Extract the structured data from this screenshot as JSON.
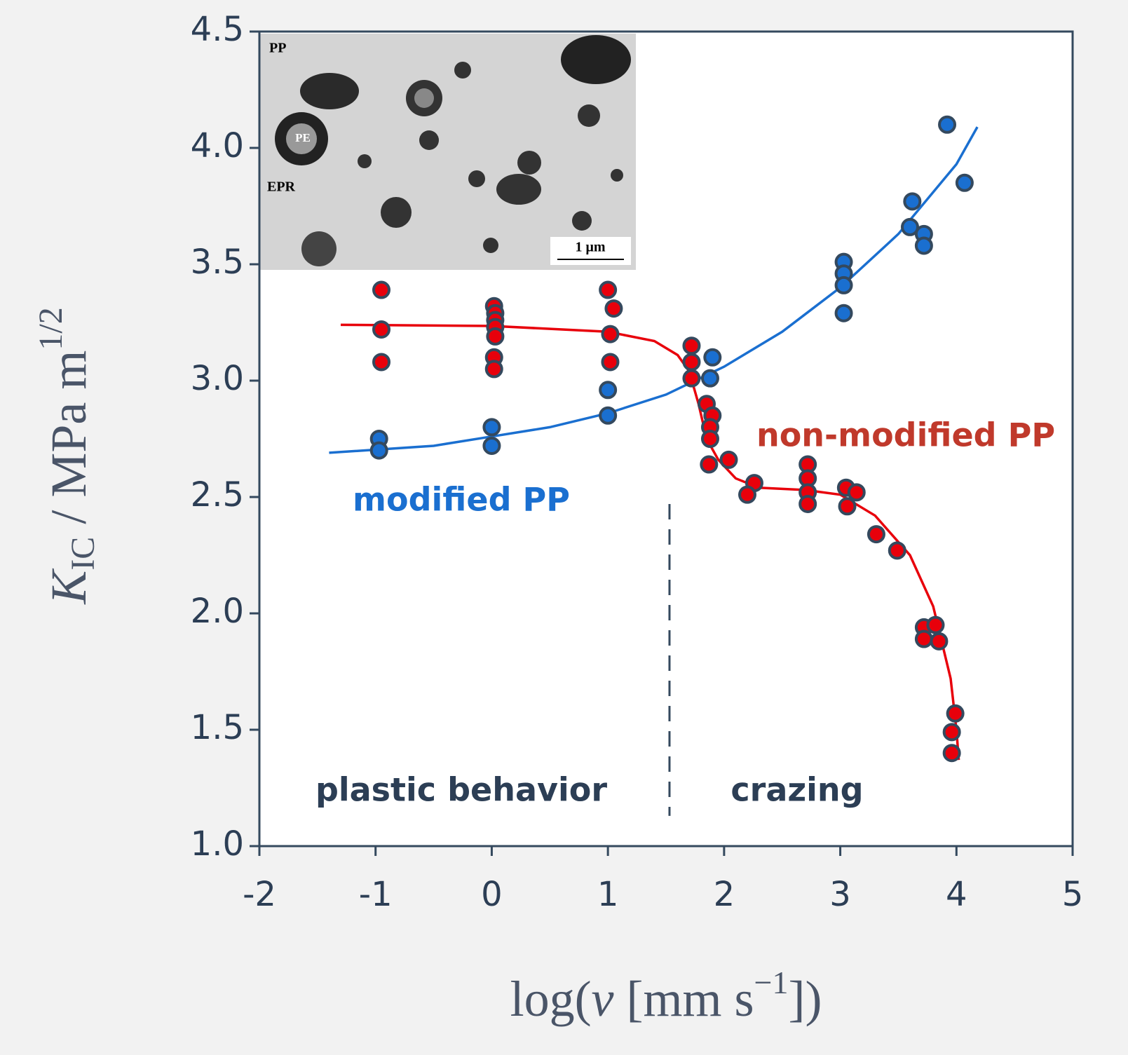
{
  "chart_data": {
    "type": "scatter",
    "xlim": [
      -2,
      5
    ],
    "ylim": [
      1,
      4.5
    ],
    "xticks": [
      -2,
      -1,
      0,
      1,
      2,
      3,
      4,
      5
    ],
    "yticks": [
      {
        "value": 1,
        "label": "1.0"
      },
      1.5,
      {
        "value": 2,
        "label": "2.0"
      },
      2.5,
      {
        "value": 3,
        "label": "3.0"
      },
      3.5,
      {
        "value": 4,
        "label": "4.0"
      },
      4.5
    ],
    "x_label": {
      "prefix": "log(",
      "symbol": "v",
      "unit": " [mm s",
      "superscript": "−1",
      "suffix": "])"
    },
    "y_label": {
      "symbol": "K",
      "subscript": "IC",
      "unit": " / MPa m",
      "superscript": "1/2"
    },
    "series": [
      {
        "name": "modified PP",
        "color": "#1a6fd0",
        "x": [
          -0.97,
          -0.97,
          0.0,
          0.0,
          1.0,
          1.0,
          1.9,
          1.88,
          3.03,
          3.03,
          3.03,
          3.03,
          3.62,
          3.6,
          3.72,
          3.72,
          3.92,
          4.07
        ],
        "y": [
          2.75,
          2.7,
          2.8,
          2.72,
          2.96,
          2.85,
          3.1,
          3.01,
          3.51,
          3.46,
          3.41,
          3.29,
          3.77,
          3.66,
          3.63,
          3.58,
          4.1,
          3.85
        ],
        "fit_x": [
          -1.4,
          -0.5,
          0,
          0.5,
          1,
          1.5,
          2,
          2.5,
          3,
          3.5,
          4,
          4.18
        ],
        "fit_y": [
          2.69,
          2.72,
          2.76,
          2.8,
          2.86,
          2.94,
          3.06,
          3.21,
          3.4,
          3.63,
          3.93,
          4.09
        ]
      },
      {
        "name": "non-modified PP",
        "color": "#e8000b",
        "x": [
          -0.95,
          -0.95,
          -0.95,
          0.02,
          0.03,
          0.03,
          0.03,
          0.03,
          0.02,
          0.02,
          1.0,
          1.05,
          1.02,
          1.02,
          1.72,
          1.72,
          1.72,
          1.85,
          1.9,
          1.88,
          1.88,
          2.04,
          1.87,
          2.26,
          2.2,
          2.72,
          2.72,
          2.72,
          2.72,
          3.05,
          3.14,
          3.06,
          3.31,
          3.49,
          3.72,
          3.72,
          3.82,
          3.85,
          3.99,
          3.96,
          3.96
        ],
        "y": [
          3.39,
          3.22,
          3.08,
          3.32,
          3.29,
          3.26,
          3.23,
          3.19,
          3.1,
          3.05,
          3.39,
          3.31,
          3.2,
          3.08,
          3.15,
          3.08,
          3.01,
          2.9,
          2.85,
          2.8,
          2.75,
          2.66,
          2.64,
          2.56,
          2.51,
          2.64,
          2.58,
          2.52,
          2.47,
          2.54,
          2.52,
          2.46,
          2.34,
          2.27,
          1.94,
          1.89,
          1.95,
          1.88,
          1.57,
          1.49,
          1.4
        ],
        "fit_x": [
          -1.3,
          0,
          1,
          1.4,
          1.6,
          1.7,
          1.78,
          1.85,
          1.95,
          2.1,
          2.3,
          2.7,
          3,
          3.3,
          3.6,
          3.8,
          3.95,
          4.0,
          4.02
        ],
        "fit_y": [
          3.24,
          3.235,
          3.21,
          3.17,
          3.11,
          3.04,
          2.9,
          2.75,
          2.66,
          2.58,
          2.54,
          2.53,
          2.51,
          2.42,
          2.25,
          2.03,
          1.72,
          1.5,
          1.37
        ]
      }
    ],
    "divider_x": 1.53,
    "regions": [
      "plastic behavior",
      "crazing"
    ],
    "inset_labels": [
      "PP",
      "PE",
      "EPR",
      "1 μm"
    ]
  }
}
